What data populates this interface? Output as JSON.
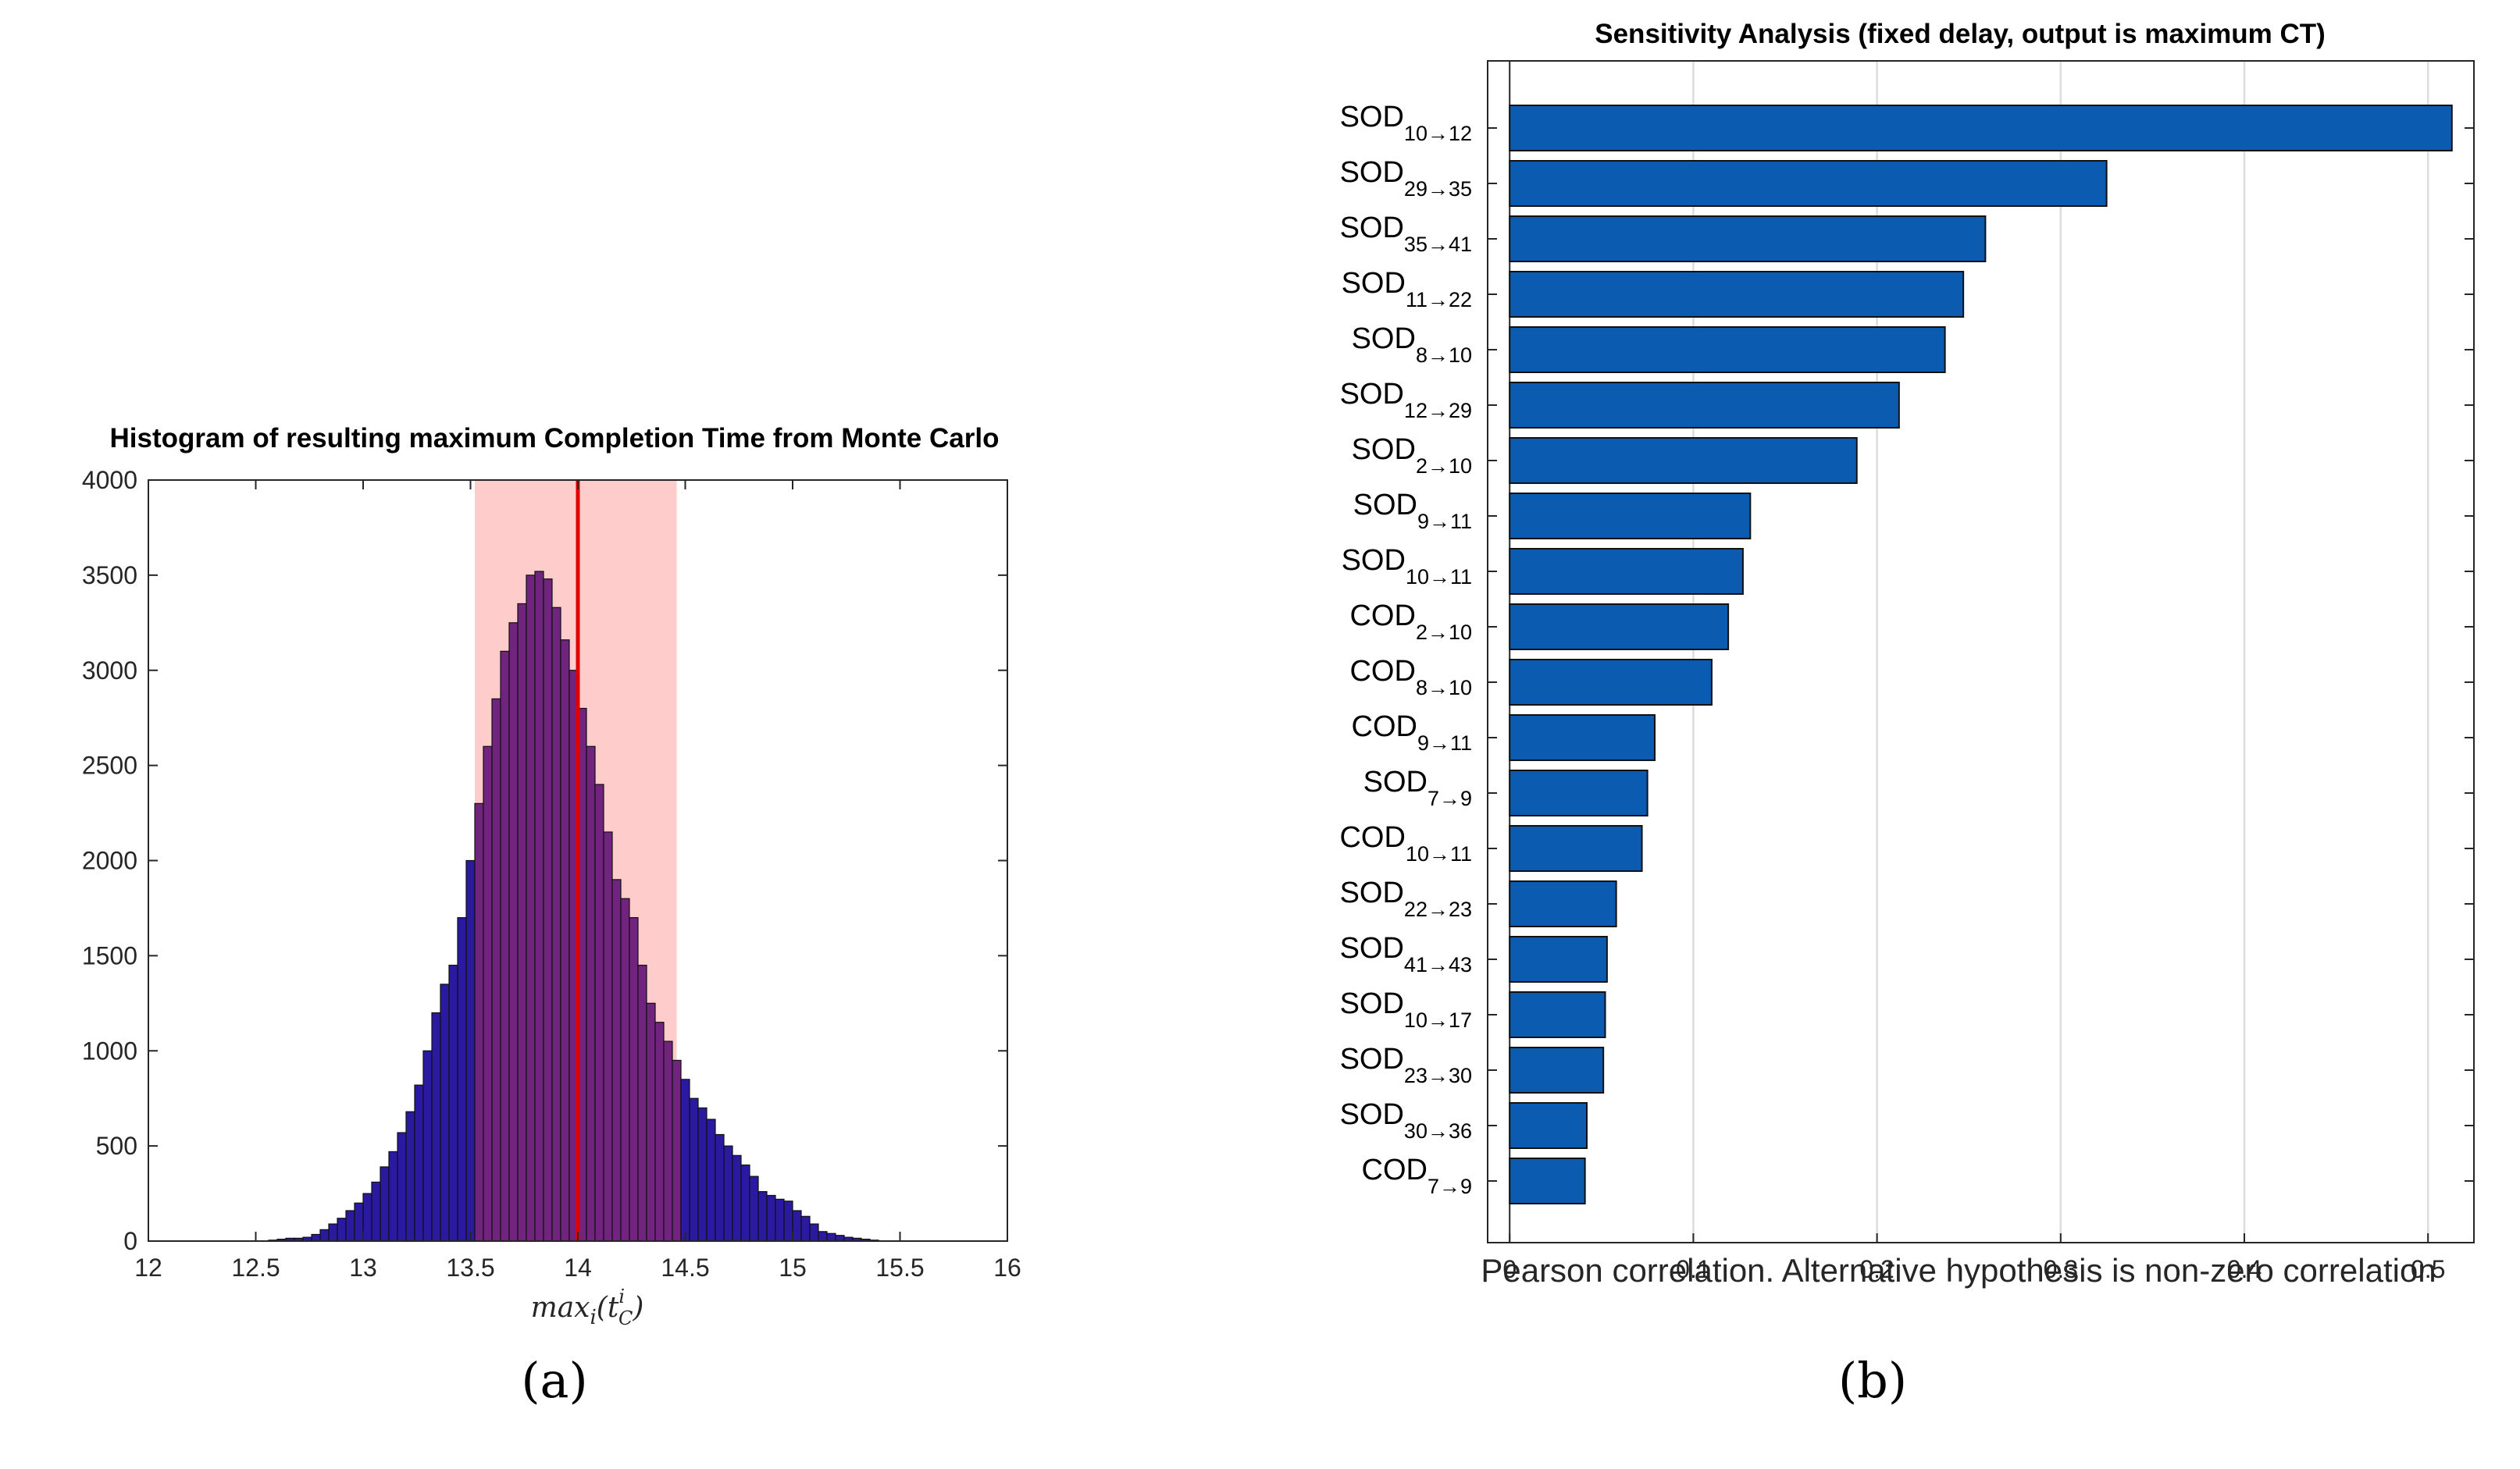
{
  "colors": {
    "hist_bar": "#2a1aa0",
    "hist_overlap": "#70247e",
    "band": "#ffcccc",
    "mean_line": "#e00000",
    "sens_bar": "#0b5cb0",
    "grid": "#dcdcdc"
  },
  "chart_data": [
    {
      "type": "bar",
      "subtype": "histogram",
      "title": "Histogram of resulting maximum Completion Time from Monte Carlo",
      "xlabel": "max_i(t_C^i)",
      "xlabel_main": "max",
      "xlabel_sub": "i",
      "xlabel_arg": "(t",
      "xlabel_arg_sub": "C",
      "xlabel_arg_sup": "i",
      "xlabel_close": ")",
      "ylabel": "",
      "xlim": [
        12,
        16
      ],
      "ylim": [
        0,
        4000
      ],
      "xticks": [
        "12",
        "12.5",
        "13",
        "13.5",
        "14",
        "14.5",
        "15",
        "15.5",
        "16"
      ],
      "yticks": [
        "0",
        "500",
        "1000",
        "1500",
        "2000",
        "2500",
        "3000",
        "3500",
        "4000"
      ],
      "bin_start": 12.0,
      "bin_width": 0.04,
      "counts": [
        0,
        0,
        0,
        0,
        0,
        0,
        0,
        0,
        0,
        0,
        0,
        0,
        0,
        0,
        5,
        10,
        15,
        15,
        20,
        35,
        60,
        90,
        120,
        160,
        200,
        250,
        310,
        390,
        470,
        570,
        680,
        820,
        1000,
        1200,
        1350,
        1450,
        1700,
        2000,
        2300,
        2600,
        2850,
        3100,
        3250,
        3350,
        3500,
        3520,
        3480,
        3330,
        3160,
        3000,
        2800,
        2600,
        2400,
        2150,
        1900,
        1800,
        1700,
        1450,
        1250,
        1150,
        1050,
        950,
        850,
        750,
        700,
        640,
        560,
        500,
        450,
        400,
        340,
        260,
        240,
        220,
        210,
        160,
        130,
        90,
        50,
        40,
        30,
        20,
        15,
        10,
        5,
        0,
        0,
        0,
        0,
        0,
        0,
        0,
        0,
        0,
        0,
        0,
        0,
        0,
        0,
        0
      ],
      "shaded_interval": [
        13.52,
        14.46
      ],
      "mean_line_x": 14.0,
      "grid": false
    },
    {
      "type": "bar",
      "orientation": "horizontal",
      "title": "Sensitivity Analysis (fixed delay, output is maximum CT)",
      "xlabel": "Pearson correlation. Alternative hypothesis is non-zero correlation",
      "ylabel": "",
      "xlim": [
        -0.012,
        0.525
      ],
      "xticks": [
        "0",
        "0.1",
        "0.2",
        "0.3",
        "0.4",
        "0.5"
      ],
      "categories": [
        {
          "name": "SOD",
          "sub": "10→12"
        },
        {
          "name": "SOD",
          "sub": "29→35"
        },
        {
          "name": "SOD",
          "sub": "35→41"
        },
        {
          "name": "SOD",
          "sub": "11→22"
        },
        {
          "name": "SOD",
          "sub": "8→10"
        },
        {
          "name": "SOD",
          "sub": "12→29"
        },
        {
          "name": "SOD",
          "sub": "2→10"
        },
        {
          "name": "SOD",
          "sub": "9→11"
        },
        {
          "name": "SOD",
          "sub": "10→11"
        },
        {
          "name": "COD",
          "sub": "2→10"
        },
        {
          "name": "COD",
          "sub": "8→10"
        },
        {
          "name": "COD",
          "sub": "9→11"
        },
        {
          "name": "SOD",
          "sub": "7→9"
        },
        {
          "name": "COD",
          "sub": "10→11"
        },
        {
          "name": "SOD",
          "sub": "22→23"
        },
        {
          "name": "SOD",
          "sub": "41→43"
        },
        {
          "name": "SOD",
          "sub": "10→17"
        },
        {
          "name": "SOD",
          "sub": "23→30"
        },
        {
          "name": "SOD",
          "sub": "30→36"
        },
        {
          "name": "COD",
          "sub": "7→9"
        }
      ],
      "values": [
        0.513,
        0.325,
        0.259,
        0.247,
        0.237,
        0.212,
        0.189,
        0.131,
        0.127,
        0.119,
        0.11,
        0.079,
        0.075,
        0.072,
        0.058,
        0.053,
        0.052,
        0.051,
        0.042,
        0.041
      ],
      "grid": true
    }
  ],
  "panel_labels": [
    "(a)",
    "(b)"
  ]
}
